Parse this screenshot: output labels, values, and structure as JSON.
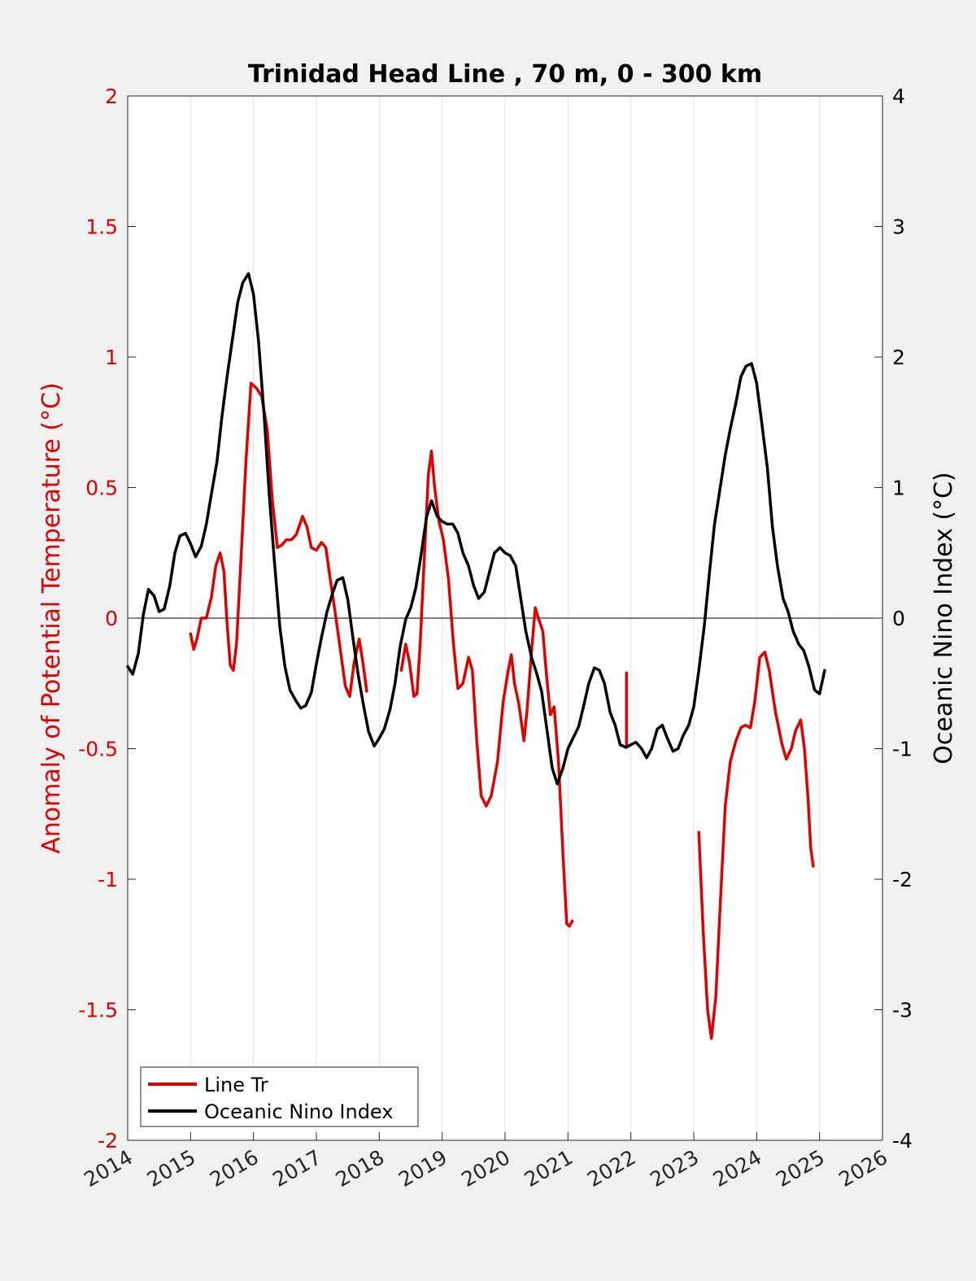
{
  "chart_data": {
    "type": "line",
    "title": "Trinidad Head Line , 70 m, 0 - 300 km",
    "xlabel": "",
    "ylabel_left": "Anomaly of Potential Temperature (°C)",
    "ylabel_right": "Oceanic Nino Index (°C)",
    "xlim": [
      2014,
      2026
    ],
    "ylim_left": [
      -2,
      2
    ],
    "ylim_right": [
      -4,
      4
    ],
    "xticks": [
      "2014",
      "2015",
      "2016",
      "2017",
      "2018",
      "2019",
      "2020",
      "2021",
      "2022",
      "2023",
      "2024",
      "2025",
      "2026"
    ],
    "yticks_left": [
      "-2",
      "-1.5",
      "-1",
      "-0.5",
      "0",
      "0.5",
      "1",
      "1.5",
      "2"
    ],
    "yticks_right": [
      "-4",
      "-3",
      "-2",
      "-1",
      "0",
      "1",
      "2",
      "3",
      "4"
    ],
    "grid": "vertical",
    "legend_position": "bottom-left",
    "colors": {
      "left_axis": "#e00000",
      "right_axis": "#000000",
      "background": "#f0f0f0",
      "plot_area": "#ffffff"
    },
    "series": [
      {
        "name": "Line Tr",
        "axis": "left",
        "color": "#e00000",
        "segments": [
          [
            [
              2015.0,
              -0.06
            ],
            [
              2015.05,
              -0.12
            ],
            [
              2015.1,
              -0.08
            ],
            [
              2015.17,
              0.0
            ],
            [
              2015.25,
              0.0
            ],
            [
              2015.33,
              0.08
            ],
            [
              2015.4,
              0.2
            ],
            [
              2015.47,
              0.25
            ],
            [
              2015.53,
              0.18
            ],
            [
              2015.58,
              -0.02
            ],
            [
              2015.63,
              -0.18
            ],
            [
              2015.68,
              -0.2
            ],
            [
              2015.73,
              -0.1
            ],
            [
              2015.8,
              0.22
            ],
            [
              2015.88,
              0.6
            ],
            [
              2015.96,
              0.9
            ],
            [
              2016.05,
              0.88
            ],
            [
              2016.13,
              0.85
            ],
            [
              2016.22,
              0.72
            ],
            [
              2016.3,
              0.45
            ],
            [
              2016.38,
              0.27
            ],
            [
              2016.45,
              0.28
            ],
            [
              2016.52,
              0.3
            ],
            [
              2016.6,
              0.3
            ],
            [
              2016.68,
              0.32
            ],
            [
              2016.78,
              0.39
            ],
            [
              2016.85,
              0.35
            ],
            [
              2016.92,
              0.27
            ],
            [
              2017.0,
              0.26
            ],
            [
              2017.08,
              0.29
            ],
            [
              2017.15,
              0.27
            ],
            [
              2017.22,
              0.15
            ],
            [
              2017.3,
              0.02
            ],
            [
              2017.38,
              -0.12
            ],
            [
              2017.46,
              -0.26
            ],
            [
              2017.53,
              -0.3
            ],
            [
              2017.6,
              -0.17
            ],
            [
              2017.68,
              -0.08
            ],
            [
              2017.74,
              -0.17
            ],
            [
              2017.8,
              -0.28
            ]
          ],
          [
            [
              2018.35,
              -0.2
            ],
            [
              2018.42,
              -0.1
            ],
            [
              2018.48,
              -0.17
            ],
            [
              2018.55,
              -0.3
            ],
            [
              2018.6,
              -0.29
            ],
            [
              2018.65,
              -0.1
            ],
            [
              2018.72,
              0.25
            ],
            [
              2018.78,
              0.55
            ],
            [
              2018.83,
              0.64
            ],
            [
              2018.88,
              0.5
            ],
            [
              2018.95,
              0.37
            ],
            [
              2019.02,
              0.3
            ],
            [
              2019.1,
              0.15
            ],
            [
              2019.18,
              -0.1
            ],
            [
              2019.25,
              -0.27
            ],
            [
              2019.33,
              -0.25
            ],
            [
              2019.42,
              -0.15
            ],
            [
              2019.48,
              -0.2
            ],
            [
              2019.55,
              -0.47
            ],
            [
              2019.62,
              -0.68
            ],
            [
              2019.7,
              -0.72
            ],
            [
              2019.78,
              -0.68
            ],
            [
              2019.88,
              -0.55
            ],
            [
              2019.97,
              -0.32
            ],
            [
              2020.05,
              -0.2
            ],
            [
              2020.1,
              -0.14
            ],
            [
              2020.15,
              -0.25
            ],
            [
              2020.22,
              -0.33
            ],
            [
              2020.3,
              -0.47
            ],
            [
              2020.35,
              -0.35
            ],
            [
              2020.42,
              -0.13
            ],
            [
              2020.48,
              0.04
            ],
            [
              2020.53,
              0.0
            ],
            [
              2020.6,
              -0.05
            ],
            [
              2020.66,
              -0.22
            ],
            [
              2020.72,
              -0.37
            ],
            [
              2020.78,
              -0.34
            ],
            [
              2020.85,
              -0.55
            ],
            [
              2020.92,
              -0.9
            ],
            [
              2020.98,
              -1.17
            ],
            [
              2021.02,
              -1.18
            ],
            [
              2021.07,
              -1.16
            ]
          ],
          [
            [
              2021.93,
              -0.21
            ],
            [
              2021.93,
              -0.49
            ]
          ],
          [
            [
              2023.08,
              -0.82
            ],
            [
              2023.15,
              -1.2
            ],
            [
              2023.22,
              -1.5
            ],
            [
              2023.28,
              -1.61
            ],
            [
              2023.35,
              -1.45
            ],
            [
              2023.42,
              -1.1
            ],
            [
              2023.5,
              -0.72
            ],
            [
              2023.58,
              -0.55
            ],
            [
              2023.67,
              -0.47
            ],
            [
              2023.75,
              -0.42
            ],
            [
              2023.82,
              -0.41
            ],
            [
              2023.9,
              -0.42
            ],
            [
              2023.97,
              -0.32
            ],
            [
              2024.05,
              -0.15
            ],
            [
              2024.13,
              -0.13
            ],
            [
              2024.2,
              -0.2
            ],
            [
              2024.3,
              -0.36
            ],
            [
              2024.4,
              -0.48
            ],
            [
              2024.47,
              -0.54
            ],
            [
              2024.55,
              -0.5
            ],
            [
              2024.62,
              -0.43
            ],
            [
              2024.7,
              -0.39
            ],
            [
              2024.76,
              -0.5
            ],
            [
              2024.82,
              -0.7
            ],
            [
              2024.86,
              -0.88
            ],
            [
              2024.9,
              -0.95
            ]
          ]
        ]
      },
      {
        "name": "Oceanic Nino Index",
        "axis": "right",
        "color": "#000000",
        "segments": [
          [
            [
              2014.0,
              -0.37
            ],
            [
              2014.08,
              -0.43
            ],
            [
              2014.17,
              -0.27
            ],
            [
              2014.25,
              0.03
            ],
            [
              2014.33,
              0.22
            ],
            [
              2014.42,
              0.17
            ],
            [
              2014.5,
              0.05
            ],
            [
              2014.58,
              0.07
            ],
            [
              2014.67,
              0.25
            ],
            [
              2014.75,
              0.5
            ],
            [
              2014.83,
              0.63
            ],
            [
              2014.92,
              0.65
            ],
            [
              2015.0,
              0.57
            ],
            [
              2015.08,
              0.47
            ],
            [
              2015.17,
              0.55
            ],
            [
              2015.25,
              0.72
            ],
            [
              2015.33,
              0.95
            ],
            [
              2015.42,
              1.2
            ],
            [
              2015.5,
              1.55
            ],
            [
              2015.58,
              1.85
            ],
            [
              2015.67,
              2.15
            ],
            [
              2015.75,
              2.42
            ],
            [
              2015.83,
              2.57
            ],
            [
              2015.92,
              2.64
            ],
            [
              2016.0,
              2.48
            ],
            [
              2016.08,
              2.12
            ],
            [
              2016.17,
              1.55
            ],
            [
              2016.25,
              0.95
            ],
            [
              2016.33,
              0.45
            ],
            [
              2016.42,
              -0.07
            ],
            [
              2016.5,
              -0.37
            ],
            [
              2016.58,
              -0.55
            ],
            [
              2016.67,
              -0.63
            ],
            [
              2016.75,
              -0.69
            ],
            [
              2016.83,
              -0.67
            ],
            [
              2016.92,
              -0.57
            ],
            [
              2017.0,
              -0.35
            ],
            [
              2017.08,
              -0.15
            ],
            [
              2017.17,
              0.05
            ],
            [
              2017.25,
              0.18
            ],
            [
              2017.33,
              0.29
            ],
            [
              2017.42,
              0.31
            ],
            [
              2017.5,
              0.14
            ],
            [
              2017.58,
              -0.15
            ],
            [
              2017.67,
              -0.45
            ],
            [
              2017.75,
              -0.67
            ],
            [
              2017.83,
              -0.87
            ],
            [
              2017.92,
              -0.98
            ],
            [
              2018.0,
              -0.92
            ],
            [
              2018.08,
              -0.85
            ],
            [
              2018.17,
              -0.7
            ],
            [
              2018.25,
              -0.5
            ],
            [
              2018.33,
              -0.22
            ],
            [
              2018.42,
              -0.01
            ],
            [
              2018.5,
              0.08
            ],
            [
              2018.58,
              0.23
            ],
            [
              2018.67,
              0.5
            ],
            [
              2018.75,
              0.77
            ],
            [
              2018.83,
              0.9
            ],
            [
              2018.92,
              0.78
            ],
            [
              2019.0,
              0.74
            ],
            [
              2019.08,
              0.72
            ],
            [
              2019.17,
              0.72
            ],
            [
              2019.25,
              0.65
            ],
            [
              2019.33,
              0.5
            ],
            [
              2019.42,
              0.4
            ],
            [
              2019.5,
              0.25
            ],
            [
              2019.58,
              0.15
            ],
            [
              2019.67,
              0.2
            ],
            [
              2019.75,
              0.35
            ],
            [
              2019.83,
              0.5
            ],
            [
              2019.92,
              0.54
            ],
            [
              2020.0,
              0.5
            ],
            [
              2020.08,
              0.48
            ],
            [
              2020.17,
              0.4
            ],
            [
              2020.25,
              0.15
            ],
            [
              2020.33,
              -0.1
            ],
            [
              2020.42,
              -0.3
            ],
            [
              2020.5,
              -0.42
            ],
            [
              2020.58,
              -0.56
            ],
            [
              2020.67,
              -0.87
            ],
            [
              2020.75,
              -1.15
            ],
            [
              2020.83,
              -1.27
            ],
            [
              2020.92,
              -1.15
            ],
            [
              2021.0,
              -1.0
            ],
            [
              2021.08,
              -0.92
            ],
            [
              2021.17,
              -0.83
            ],
            [
              2021.25,
              -0.67
            ],
            [
              2021.33,
              -0.5
            ],
            [
              2021.42,
              -0.38
            ],
            [
              2021.5,
              -0.4
            ],
            [
              2021.58,
              -0.5
            ],
            [
              2021.67,
              -0.72
            ],
            [
              2021.75,
              -0.82
            ],
            [
              2021.83,
              -0.97
            ],
            [
              2021.92,
              -0.99
            ],
            [
              2022.0,
              -0.97
            ],
            [
              2022.08,
              -0.95
            ],
            [
              2022.17,
              -1.0
            ],
            [
              2022.25,
              -1.07
            ],
            [
              2022.33,
              -1.0
            ],
            [
              2022.42,
              -0.85
            ],
            [
              2022.5,
              -0.82
            ],
            [
              2022.58,
              -0.92
            ],
            [
              2022.67,
              -1.02
            ],
            [
              2022.75,
              -1.0
            ],
            [
              2022.83,
              -0.9
            ],
            [
              2022.92,
              -0.82
            ],
            [
              2023.0,
              -0.68
            ],
            [
              2023.08,
              -0.4
            ],
            [
              2023.17,
              -0.05
            ],
            [
              2023.25,
              0.35
            ],
            [
              2023.33,
              0.72
            ],
            [
              2023.42,
              1.0
            ],
            [
              2023.5,
              1.25
            ],
            [
              2023.58,
              1.45
            ],
            [
              2023.67,
              1.65
            ],
            [
              2023.75,
              1.85
            ],
            [
              2023.83,
              1.93
            ],
            [
              2023.92,
              1.95
            ],
            [
              2024.0,
              1.8
            ],
            [
              2024.08,
              1.5
            ],
            [
              2024.17,
              1.15
            ],
            [
              2024.25,
              0.7
            ],
            [
              2024.33,
              0.4
            ],
            [
              2024.42,
              0.15
            ],
            [
              2024.5,
              0.05
            ],
            [
              2024.58,
              -0.1
            ],
            [
              2024.67,
              -0.2
            ],
            [
              2024.75,
              -0.25
            ],
            [
              2024.83,
              -0.37
            ],
            [
              2024.92,
              -0.55
            ],
            [
              2025.0,
              -0.58
            ],
            [
              2025.08,
              -0.4
            ]
          ]
        ]
      }
    ]
  }
}
